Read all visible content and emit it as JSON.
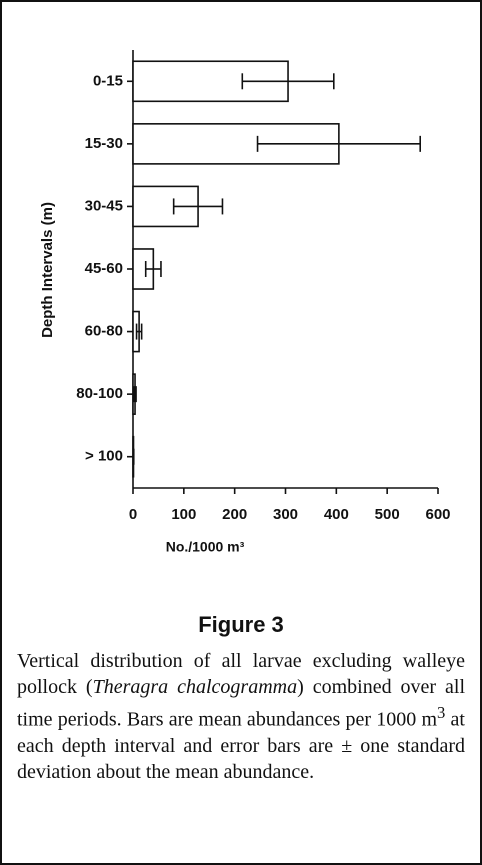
{
  "chart_data": {
    "type": "bar",
    "orientation": "horizontal",
    "categories": [
      "0-15",
      "15-30",
      "30-45",
      "45-60",
      "60-80",
      "80-100",
      "> 100"
    ],
    "values": [
      305,
      405,
      128,
      40,
      12,
      4,
      1
    ],
    "errors": [
      90,
      160,
      48,
      15,
      5,
      2,
      0.5
    ],
    "color": "#ffffff",
    "xlim": [
      0,
      600
    ],
    "xticks": [
      0,
      100,
      200,
      300,
      400,
      500,
      600
    ],
    "xlabel": "No./1000 m³",
    "ylabel": "Depth Intervals (m)"
  },
  "figure_label": "Figure 3",
  "caption": [
    "Vertical distribution of all larvae excluding walleye pollock (",
    "Theragra chalcogramma",
    ") combined over all time periods. Bars are mean abundances per 1000 m",
    "3",
    " at each depth interval and error bars are ± one standard deviation about the mean abundance."
  ]
}
